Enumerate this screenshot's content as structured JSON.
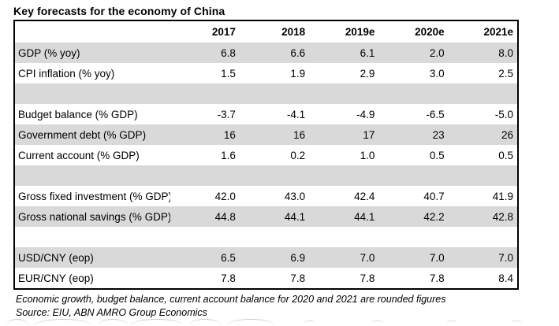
{
  "title": "Key forecasts for the economy of China",
  "table": {
    "columns": [
      "",
      "2017",
      "2018",
      "2019e",
      "2020e",
      "2021e"
    ],
    "rows": [
      {
        "label": "GDP (% yoy)",
        "values": [
          "6.8",
          "6.6",
          "6.1",
          "2.0",
          "8.0"
        ]
      },
      {
        "label": "CPI inflation (% yoy)",
        "values": [
          "1.5",
          "1.9",
          "2.9",
          "3.0",
          "2.5"
        ]
      },
      {
        "label": "",
        "values": [
          "",
          "",
          "",
          "",
          ""
        ]
      },
      {
        "label": "Budget balance (% GDP)",
        "values": [
          "-3.7",
          "-4.1",
          "-4.9",
          "-6.5",
          "-5.0"
        ]
      },
      {
        "label": "Government debt (% GDP)",
        "values": [
          "16",
          "16",
          "17",
          "23",
          "26"
        ]
      },
      {
        "label": "Current account (% GDP)",
        "values": [
          "1.6",
          "0.2",
          "1.0",
          "0.5",
          "0.5"
        ]
      },
      {
        "label": "",
        "values": [
          "",
          "",
          "",
          "",
          ""
        ]
      },
      {
        "label": "Gross fixed investment (% GDP)",
        "values": [
          "42.0",
          "43.0",
          "42.4",
          "40.7",
          "41.9"
        ]
      },
      {
        "label": "Gross national savings (% GDP)",
        "values": [
          "44.8",
          "44.1",
          "44.1",
          "42.2",
          "42.8"
        ]
      },
      {
        "label": "",
        "values": [
          "",
          "",
          "",
          "",
          ""
        ]
      },
      {
        "label": "USD/CNY (eop)",
        "values": [
          "6.5",
          "6.9",
          "7.0",
          "7.0",
          "7.0"
        ]
      },
      {
        "label": "EUR/CNY (eop)",
        "values": [
          "7.8",
          "7.8",
          "7.8",
          "7.8",
          "8.4"
        ]
      }
    ]
  },
  "footnote": "Economic growth, budget balance, current account balance for 2020 and 2021 are rounded figures",
  "source": "Source: EIU, ABN AMRO Group Economics",
  "colors": {
    "row_shade": "#d9d9d9",
    "table_border": "#000000",
    "text": "#000000"
  }
}
